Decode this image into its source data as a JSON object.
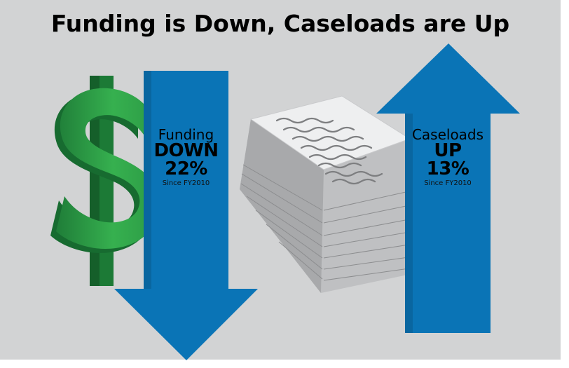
{
  "title": "Funding is Down, Caseloads are Up",
  "funding": {
    "caption": "Funding",
    "direction": "DOWN",
    "percent": "22%",
    "since": "Since FY2010",
    "arrow_icon": "arrow-down-icon",
    "symbol_icon": "dollar-sign-icon"
  },
  "caseloads": {
    "caption": "Caseloads",
    "direction": "UP",
    "percent": "13%",
    "since": "Since FY2010",
    "arrow_icon": "arrow-up-icon",
    "symbol_icon": "paper-stack-icon"
  },
  "colors": {
    "background": "#d2d3d4",
    "arrow_blue": "#0a74b6",
    "dollar_green": "#2fa84f",
    "dollar_dark_green": "#1c7a36",
    "paper": "#e9eaeb"
  }
}
